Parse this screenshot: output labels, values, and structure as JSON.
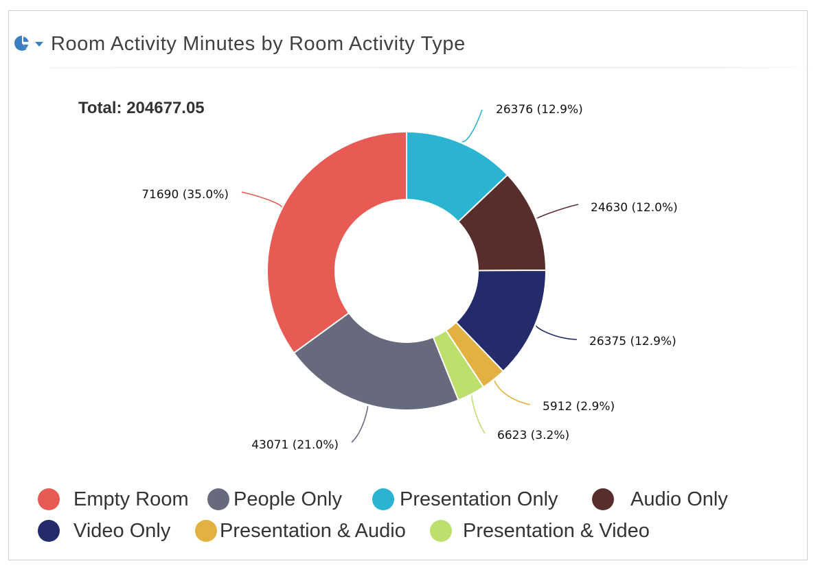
{
  "header": {
    "title": "Room Activity Minutes by Room Activity Type",
    "chart_type_icon": "pie-chart-icon",
    "dropdown_icon": "caret-down-icon"
  },
  "total_label": "Total: 204677.05",
  "colors": {
    "accent": "#3a7fc1",
    "empty_room": "#e85a54",
    "people_only": "#676a7d",
    "presentation_only": "#2ab4d2",
    "audio_only": "#582e2d",
    "video_only": "#232b6b",
    "presentation_audio": "#e2b141",
    "presentation_video": "#bcdf6e"
  },
  "chart_data": {
    "type": "pie",
    "donut": true,
    "title": "Room Activity Minutes by Room Activity Type",
    "total": 204677.05,
    "legend_position": "bottom",
    "slices": [
      {
        "name": "Presentation Only",
        "value": 26376,
        "percent": 12.9,
        "label": "26376 (12.9%)",
        "color": "#2ab4d2"
      },
      {
        "name": "Audio Only",
        "value": 24630,
        "percent": 12.0,
        "label": "24630 (12.0%)",
        "color": "#582e2d"
      },
      {
        "name": "Video Only",
        "value": 26375,
        "percent": 12.9,
        "label": "26375 (12.9%)",
        "color": "#232b6b"
      },
      {
        "name": "Presentation & Audio",
        "value": 5912,
        "percent": 2.9,
        "label": "5912 (2.9%)",
        "color": "#e2b141"
      },
      {
        "name": "Presentation & Video",
        "value": 6623,
        "percent": 3.2,
        "label": "6623 (3.2%)",
        "color": "#bcdf6e"
      },
      {
        "name": "People Only",
        "value": 43071,
        "percent": 21.0,
        "label": "43071 (21.0%)",
        "color": "#676a7d"
      },
      {
        "name": "Empty Room",
        "value": 71690,
        "percent": 35.0,
        "label": "71690 (35.0%)",
        "color": "#e85a54"
      }
    ],
    "legend": [
      {
        "name": "Empty Room",
        "color": "#e85a54"
      },
      {
        "name": "People Only",
        "color": "#676a7d"
      },
      {
        "name": "Presentation Only",
        "color": "#2ab4d2"
      },
      {
        "name": "Audio Only",
        "color": "#582e2d"
      },
      {
        "name": "Video Only",
        "color": "#232b6b"
      },
      {
        "name": "Presentation & Audio",
        "color": "#e2b141"
      },
      {
        "name": "Presentation & Video",
        "color": "#bcdf6e"
      }
    ]
  }
}
